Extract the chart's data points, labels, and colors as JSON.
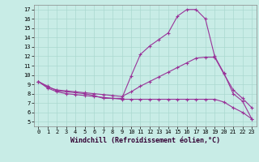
{
  "xlabel": "Windchill (Refroidissement éolien,°C)",
  "bg_color": "#c8ece6",
  "grid_color": "#aad8d0",
  "line_color": "#993399",
  "xlim": [
    -0.5,
    23.5
  ],
  "ylim": [
    4.5,
    17.5
  ],
  "xticks": [
    0,
    1,
    2,
    3,
    4,
    5,
    6,
    7,
    8,
    9,
    10,
    11,
    12,
    13,
    14,
    15,
    16,
    17,
    18,
    19,
    20,
    21,
    22,
    23
  ],
  "yticks": [
    5,
    6,
    7,
    8,
    9,
    10,
    11,
    12,
    13,
    14,
    15,
    16,
    17
  ],
  "lines": [
    {
      "x": [
        0,
        1,
        2,
        3,
        4,
        5,
        6,
        7,
        8,
        9,
        10,
        11,
        12,
        13,
        14,
        15,
        16,
        17,
        18,
        19,
        20,
        21,
        22,
        23
      ],
      "y": [
        9.3,
        8.8,
        8.3,
        8.2,
        8.1,
        8.0,
        7.8,
        7.5,
        7.5,
        7.5,
        9.9,
        12.2,
        13.1,
        13.8,
        14.5,
        16.3,
        17.0,
        17.0,
        16.0,
        12.0,
        10.2,
        8.0,
        7.2,
        5.3
      ]
    },
    {
      "x": [
        0,
        1,
        2,
        3,
        4,
        5,
        6,
        7,
        8,
        9,
        10,
        11,
        12,
        13,
        14,
        15,
        16,
        17,
        18,
        19,
        20,
        21,
        22,
        23
      ],
      "y": [
        9.3,
        8.7,
        8.4,
        8.3,
        8.2,
        8.1,
        8.0,
        7.9,
        7.8,
        7.7,
        8.2,
        8.8,
        9.3,
        9.8,
        10.3,
        10.8,
        11.3,
        11.8,
        11.9,
        11.9,
        10.1,
        8.4,
        7.5,
        6.5
      ]
    },
    {
      "x": [
        0,
        1,
        2,
        3,
        4,
        5,
        6,
        7,
        8,
        9,
        10,
        11,
        12,
        13,
        14,
        15,
        16,
        17,
        18,
        19,
        20,
        21,
        22,
        23
      ],
      "y": [
        9.3,
        8.6,
        8.2,
        8.0,
        7.9,
        7.8,
        7.7,
        7.6,
        7.5,
        7.4,
        7.4,
        7.4,
        7.4,
        7.4,
        7.4,
        7.4,
        7.4,
        7.4,
        7.4,
        7.4,
        7.1,
        6.5,
        6.0,
        5.3
      ]
    }
  ]
}
